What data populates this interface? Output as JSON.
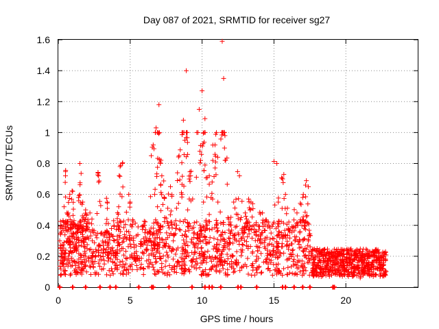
{
  "chart_data": {
    "type": "scatter",
    "title": "Day 087 of 2021, SRMTID for receiver sg27",
    "xlabel": "GPS time / hours",
    "ylabel": "SRMTID / TECUs",
    "xlim": [
      0,
      25
    ],
    "ylim": [
      0,
      1.6
    ],
    "grid": true,
    "grid_style": "dotted",
    "marker": "+",
    "marker_color": "#ff0000",
    "xticks": [
      0,
      5,
      10,
      15,
      20
    ],
    "yticks": [
      0,
      0.2,
      0.4,
      0.6,
      0.8,
      1,
      1.2,
      1.4,
      1.6
    ],
    "ytick_labels": [
      "0",
      "0.2",
      "0.4",
      "0.6",
      "0.8",
      "1",
      "1.2",
      "1.4",
      "1.6"
    ],
    "series": [
      {
        "name": "SRMTID",
        "description": "Dense scatter of SRMTID values (~3000 points) from 0 to ~23 h; representative sampled points",
        "points": [
          [
            0.1,
            0.3
          ],
          [
            0.2,
            0.22
          ],
          [
            0.3,
            0.15
          ],
          [
            0.4,
            0.52
          ],
          [
            0.5,
            0.72
          ],
          [
            0.6,
            0.48
          ],
          [
            0.7,
            0.2
          ],
          [
            0.8,
            0.6
          ],
          [
            0.9,
            0.35
          ],
          [
            1.0,
            0.62
          ],
          [
            1.1,
            0.25
          ],
          [
            1.2,
            0.14
          ],
          [
            1.3,
            0.4
          ],
          [
            1.4,
            0.58
          ],
          [
            1.5,
            0.8
          ],
          [
            1.6,
            0.3
          ],
          [
            1.7,
            0.55
          ],
          [
            1.8,
            0.18
          ],
          [
            1.9,
            0.5
          ],
          [
            2.0,
            0.25
          ],
          [
            2.2,
            0.48
          ],
          [
            2.4,
            0.22
          ],
          [
            2.6,
            0.2
          ],
          [
            2.8,
            0.72
          ],
          [
            3.0,
            0.35
          ],
          [
            3.2,
            0.15
          ],
          [
            3.4,
            0.55
          ],
          [
            3.5,
            0.28
          ],
          [
            3.7,
            0.12
          ],
          [
            3.9,
            0.3
          ],
          [
            4.1,
            0.18
          ],
          [
            4.2,
            0.52
          ],
          [
            4.3,
            0.78
          ],
          [
            4.5,
            0.25
          ],
          [
            4.7,
            0.15
          ],
          [
            4.9,
            0.6
          ],
          [
            5.1,
            0.2
          ],
          [
            5.3,
            0.22
          ],
          [
            5.5,
            0.18
          ],
          [
            5.8,
            0.28
          ],
          [
            6.0,
            0.4
          ],
          [
            6.2,
            0.35
          ],
          [
            6.4,
            0.3
          ],
          [
            6.6,
            0.92
          ],
          [
            6.7,
            0.6
          ],
          [
            6.8,
            1.03
          ],
          [
            6.9,
            0.52
          ],
          [
            7.0,
            1.18
          ],
          [
            7.1,
            0.8
          ],
          [
            7.2,
            0.72
          ],
          [
            7.4,
            0.45
          ],
          [
            7.6,
            0.32
          ],
          [
            7.8,
            0.65
          ],
          [
            8.0,
            0.3
          ],
          [
            8.2,
            0.38
          ],
          [
            8.4,
            0.85
          ],
          [
            8.6,
            0.6
          ],
          [
            8.7,
            1.08
          ],
          [
            8.8,
            0.95
          ],
          [
            8.9,
            1.4
          ],
          [
            9.0,
            0.5
          ],
          [
            9.2,
            0.72
          ],
          [
            9.4,
            0.35
          ],
          [
            9.6,
            0.12
          ],
          [
            9.8,
            1.15
          ],
          [
            9.9,
            0.82
          ],
          [
            10.0,
            1.27
          ],
          [
            10.1,
            0.55
          ],
          [
            10.2,
            1.09
          ],
          [
            10.3,
            0.4
          ],
          [
            10.5,
            0.72
          ],
          [
            10.7,
            0.68
          ],
          [
            10.9,
            0.92
          ],
          [
            11.0,
            1.0
          ],
          [
            11.1,
            0.55
          ],
          [
            11.3,
            0.3
          ],
          [
            11.4,
            1.59
          ],
          [
            11.5,
            1.35
          ],
          [
            11.6,
            0.82
          ],
          [
            11.8,
            0.45
          ],
          [
            12.0,
            0.2
          ],
          [
            12.2,
            0.55
          ],
          [
            12.4,
            0.3
          ],
          [
            12.6,
            0.72
          ],
          [
            12.8,
            0.35
          ],
          [
            13.0,
            0.48
          ],
          [
            13.2,
            0.25
          ],
          [
            13.4,
            0.55
          ],
          [
            13.6,
            0.4
          ],
          [
            13.8,
            0.2
          ],
          [
            14.0,
            0.3
          ],
          [
            14.2,
            0.48
          ],
          [
            14.4,
            0.25
          ],
          [
            14.6,
            0.15
          ],
          [
            14.8,
            0.35
          ],
          [
            15.0,
            0.42
          ],
          [
            15.2,
            0.8
          ],
          [
            15.3,
            0.55
          ],
          [
            15.4,
            0.32
          ],
          [
            15.6,
            0.7
          ],
          [
            15.8,
            0.6
          ],
          [
            16.0,
            0.38
          ],
          [
            16.2,
            0.28
          ],
          [
            16.4,
            0.18
          ],
          [
            16.6,
            0.48
          ],
          [
            16.8,
            0.3
          ],
          [
            17.0,
            0.58
          ],
          [
            17.1,
            0.38
          ],
          [
            17.2,
            0.66
          ],
          [
            17.4,
            0.3
          ],
          [
            17.6,
            0.22
          ],
          [
            17.8,
            0.18
          ],
          [
            18.0,
            0.25
          ],
          [
            18.2,
            0.12
          ],
          [
            18.4,
            0.2
          ],
          [
            18.6,
            0.1
          ],
          [
            18.8,
            0.15
          ],
          [
            19.0,
            0.22
          ],
          [
            19.2,
            0.12
          ],
          [
            19.4,
            0.18
          ],
          [
            19.6,
            0.2
          ],
          [
            19.8,
            0.14
          ],
          [
            20.0,
            0.18
          ],
          [
            20.2,
            0.1
          ],
          [
            20.4,
            0.15
          ],
          [
            20.6,
            0.08
          ],
          [
            20.8,
            0.12
          ],
          [
            21.0,
            0.06
          ],
          [
            21.2,
            0.1
          ],
          [
            21.4,
            0.14
          ],
          [
            21.6,
            0.12
          ],
          [
            21.8,
            0.15
          ],
          [
            22.0,
            0.22
          ],
          [
            22.2,
            0.18
          ],
          [
            22.4,
            0.12
          ],
          [
            22.6,
            0.14
          ],
          [
            22.8,
            0.1
          ]
        ]
      }
    ],
    "zero_markers_x": [
      0.1,
      1.0,
      1.9,
      2.9,
      3.6,
      4.0,
      5.6,
      6.5,
      6.6,
      7.7,
      9.3,
      10.2,
      10.5,
      10.7,
      11.3,
      12.5,
      12.7,
      13.8,
      15.6,
      15.8,
      16.4,
      17.0,
      17.5,
      19.1,
      19.2
    ]
  }
}
